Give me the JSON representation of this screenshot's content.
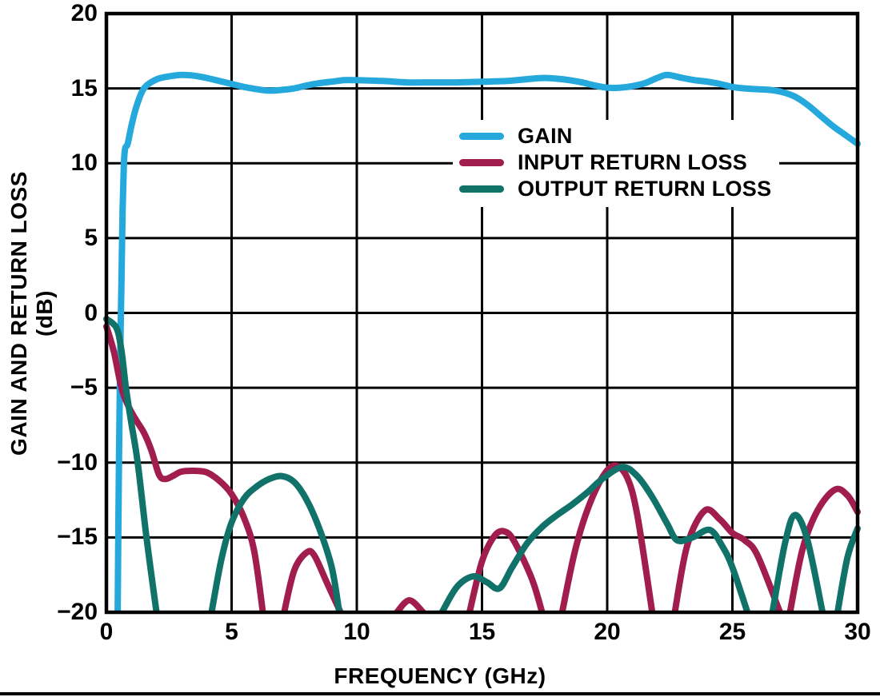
{
  "figure": {
    "background": "#ffffff",
    "grid_color": "#000000",
    "text_color": "#000000"
  },
  "chart_data": {
    "type": "line",
    "title": "",
    "xlabel": "FREQUENCY (GHz)",
    "ylabel": "GAIN AND RETURN LOSS (dB)",
    "xlim": [
      0,
      30
    ],
    "ylim": [
      -20,
      20
    ],
    "x_ticks": [
      0,
      5,
      10,
      15,
      20,
      25,
      30
    ],
    "y_ticks": [
      20,
      15,
      10,
      5,
      0,
      -5,
      -10,
      -15,
      -20
    ],
    "grid": true,
    "legend_position": "inside-top-right",
    "series": [
      {
        "name": "GAIN",
        "color": "#25A8DC",
        "segments": [
          [
            [
              0.45,
              -20
            ],
            [
              0.5,
              -10
            ],
            [
              0.55,
              -3
            ],
            [
              0.6,
              2
            ],
            [
              0.65,
              7
            ],
            [
              0.7,
              10
            ],
            [
              0.75,
              11
            ],
            [
              0.85,
              11.3
            ],
            [
              1.0,
              12.5
            ],
            [
              1.2,
              13.8
            ],
            [
              1.5,
              15.0
            ],
            [
              2.0,
              15.6
            ],
            [
              2.5,
              15.8
            ],
            [
              3.0,
              15.9
            ],
            [
              3.5,
              15.85
            ],
            [
              4.0,
              15.7
            ],
            [
              4.5,
              15.5
            ],
            [
              5.0,
              15.3
            ],
            [
              5.5,
              15.1
            ],
            [
              6.0,
              14.95
            ],
            [
              6.5,
              14.85
            ],
            [
              7.0,
              14.9
            ],
            [
              7.5,
              15.0
            ],
            [
              8.0,
              15.2
            ],
            [
              8.5,
              15.35
            ],
            [
              9.0,
              15.45
            ],
            [
              9.5,
              15.55
            ],
            [
              10.0,
              15.55
            ],
            [
              11.0,
              15.5
            ],
            [
              12.0,
              15.4
            ],
            [
              13.0,
              15.4
            ],
            [
              14.0,
              15.4
            ],
            [
              15.0,
              15.45
            ],
            [
              16.0,
              15.5
            ],
            [
              17.0,
              15.65
            ],
            [
              17.5,
              15.7
            ],
            [
              18.0,
              15.65
            ],
            [
              18.5,
              15.55
            ],
            [
              19.0,
              15.4
            ],
            [
              19.5,
              15.2
            ],
            [
              20.0,
              15.05
            ],
            [
              20.5,
              15.05
            ],
            [
              21.0,
              15.15
            ],
            [
              21.5,
              15.35
            ],
            [
              22.0,
              15.7
            ],
            [
              22.4,
              15.9
            ],
            [
              23.0,
              15.7
            ],
            [
              23.5,
              15.55
            ],
            [
              24.0,
              15.45
            ],
            [
              24.5,
              15.3
            ],
            [
              25.0,
              15.1
            ],
            [
              25.5,
              15.0
            ],
            [
              26.0,
              14.95
            ],
            [
              26.5,
              14.9
            ],
            [
              27.0,
              14.75
            ],
            [
              27.5,
              14.45
            ],
            [
              28.0,
              13.9
            ],
            [
              28.5,
              13.2
            ],
            [
              29.0,
              12.5
            ],
            [
              29.5,
              11.9
            ],
            [
              30.0,
              11.3
            ]
          ]
        ]
      },
      {
        "name": "INPUT RETURN LOSS",
        "color": "#A01D4D",
        "segments": [
          [
            [
              0,
              -0.9
            ],
            [
              0.3,
              -2.6
            ],
            [
              0.6,
              -5.0
            ],
            [
              0.9,
              -6.3
            ],
            [
              1.2,
              -7.2
            ],
            [
              1.5,
              -8.0
            ],
            [
              1.8,
              -9.2
            ],
            [
              2.1,
              -10.8
            ],
            [
              2.35,
              -11.1
            ],
            [
              2.7,
              -10.85
            ],
            [
              3.0,
              -10.6
            ],
            [
              3.5,
              -10.55
            ],
            [
              4.0,
              -10.65
            ],
            [
              4.5,
              -11.2
            ],
            [
              5.0,
              -12.1
            ],
            [
              5.5,
              -13.7
            ],
            [
              5.9,
              -15.9
            ],
            [
              6.25,
              -20
            ]
          ],
          [
            [
              7.1,
              -20
            ],
            [
              7.5,
              -17.2
            ],
            [
              8.0,
              -16.0
            ],
            [
              8.3,
              -16.2
            ],
            [
              8.8,
              -18.0
            ],
            [
              9.35,
              -20
            ]
          ],
          [
            [
              11.6,
              -20
            ],
            [
              12.1,
              -19.2
            ],
            [
              12.65,
              -20
            ]
          ],
          [
            [
              14.5,
              -20
            ],
            [
              15.0,
              -16.6
            ],
            [
              15.5,
              -14.9
            ],
            [
              15.9,
              -14.6
            ],
            [
              16.3,
              -15.3
            ],
            [
              17.0,
              -17.8
            ],
            [
              17.4,
              -20
            ]
          ],
          [
            [
              18.2,
              -20
            ],
            [
              18.7,
              -16.0
            ],
            [
              19.2,
              -13.2
            ],
            [
              19.8,
              -11.0
            ],
            [
              20.3,
              -10.2
            ],
            [
              20.8,
              -11.0
            ],
            [
              21.2,
              -13.5
            ],
            [
              21.8,
              -20
            ]
          ],
          [
            [
              22.7,
              -20
            ],
            [
              23.2,
              -15.5
            ],
            [
              23.9,
              -13.2
            ],
            [
              24.5,
              -13.8
            ],
            [
              25.0,
              -14.7
            ],
            [
              25.5,
              -15.2
            ],
            [
              26.0,
              -16.2
            ],
            [
              26.9,
              -20
            ]
          ],
          [
            [
              27.3,
              -20
            ],
            [
              27.8,
              -15.8
            ],
            [
              28.4,
              -13.2
            ],
            [
              29.1,
              -11.8
            ],
            [
              29.6,
              -12.2
            ],
            [
              30,
              -13.3
            ]
          ]
        ]
      },
      {
        "name": "OUTPUT RETURN LOSS",
        "color": "#107268",
        "segments": [
          [
            [
              0,
              -0.4
            ],
            [
              0.4,
              -1.0
            ],
            [
              0.6,
              -2.5
            ],
            [
              0.78,
              -5.0
            ],
            [
              1.0,
              -7.4
            ],
            [
              1.25,
              -10.0
            ],
            [
              1.6,
              -15.0
            ],
            [
              2.0,
              -20
            ]
          ],
          [
            [
              4.2,
              -20
            ],
            [
              4.6,
              -16.4
            ],
            [
              5.0,
              -14.0
            ],
            [
              5.5,
              -12.4
            ],
            [
              6.0,
              -11.6
            ],
            [
              6.5,
              -11.1
            ],
            [
              7.0,
              -10.9
            ],
            [
              7.5,
              -11.3
            ],
            [
              8.0,
              -12.5
            ],
            [
              8.5,
              -14.4
            ],
            [
              9.0,
              -17.0
            ],
            [
              9.3,
              -20
            ]
          ],
          [
            [
              13.4,
              -20
            ],
            [
              14.0,
              -18.3
            ],
            [
              14.65,
              -17.6
            ],
            [
              15.2,
              -18.0
            ],
            [
              15.7,
              -18.4
            ],
            [
              16.2,
              -17.0
            ],
            [
              16.8,
              -15.4
            ],
            [
              17.4,
              -14.3
            ],
            [
              18.0,
              -13.5
            ],
            [
              18.6,
              -12.8
            ],
            [
              19.2,
              -12.0
            ],
            [
              19.8,
              -11.1
            ],
            [
              20.6,
              -10.3
            ],
            [
              21.2,
              -10.9
            ],
            [
              21.8,
              -12.3
            ],
            [
              22.4,
              -14.1
            ],
            [
              22.8,
              -15.2
            ],
            [
              23.4,
              -15.0
            ],
            [
              24.1,
              -14.5
            ],
            [
              24.6,
              -15.6
            ],
            [
              25.0,
              -17.0
            ],
            [
              25.6,
              -20
            ]
          ],
          [
            [
              26.6,
              -20
            ],
            [
              27.1,
              -15.4
            ],
            [
              27.5,
              -13.5
            ],
            [
              28.0,
              -15.2
            ],
            [
              28.6,
              -20
            ]
          ],
          [
            [
              29.2,
              -20
            ],
            [
              29.6,
              -16.3
            ],
            [
              30,
              -14.4
            ]
          ]
        ]
      }
    ]
  }
}
